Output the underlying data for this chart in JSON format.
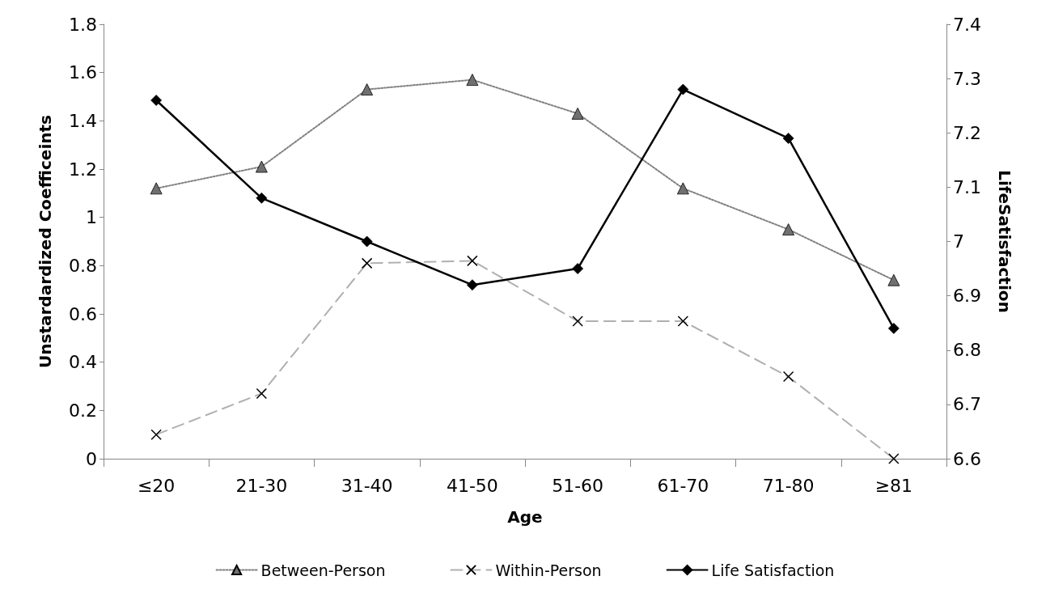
{
  "chart_data": {
    "type": "line",
    "xlabel": "Age",
    "ylabel": "Unstardardized Coefficeints",
    "y2label": "LifeSatisfaction",
    "categories": [
      "≤20",
      "21-30",
      "31-40",
      "41-50",
      "51-60",
      "61-70",
      "71-80",
      "≥81"
    ],
    "series": [
      {
        "name": "Between-Person",
        "color": "#808080",
        "marker": "triangle",
        "line_style": "dotted",
        "values": [
          1.12,
          1.21,
          1.53,
          1.57,
          1.43,
          1.12,
          0.95,
          0.74
        ]
      },
      {
        "name": "Within-Person",
        "color": "#b0b0b0",
        "marker": "cross",
        "line_style": "dashed",
        "values": [
          0.1,
          0.27,
          0.81,
          0.82,
          0.57,
          0.57,
          0.34,
          0.0
        ]
      },
      {
        "name": "Life Satisfaction",
        "color": "#000000",
        "marker": "diamond",
        "line_style": "solid",
        "axis": "y2",
        "values": [
          7.26,
          7.08,
          7.0,
          6.92,
          6.95,
          7.28,
          7.19,
          6.84
        ]
      }
    ],
    "ylim": [
      0,
      1.8
    ],
    "yticks": [
      0,
      0.2,
      0.4,
      0.6,
      0.8,
      1,
      1.2,
      1.4,
      1.6,
      1.8
    ],
    "y2lim": [
      6.6,
      7.4
    ],
    "y2ticks": [
      6.6,
      6.7,
      6.8,
      6.9,
      7,
      7.1,
      7.2,
      7.3,
      7.4
    ],
    "grid": false,
    "legend": "bottom"
  }
}
